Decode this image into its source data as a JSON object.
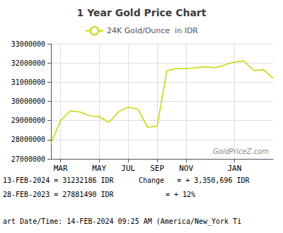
{
  "chart_data": {
    "type": "line",
    "title": "1 Year Gold Price Chart",
    "categories": [
      null,
      "MAR",
      null,
      null,
      null,
      "MAY",
      null,
      null,
      "JUL",
      null,
      null,
      "SEP",
      null,
      null,
      "NOV",
      null,
      null,
      null,
      null,
      "JAN",
      null,
      null,
      null,
      null
    ],
    "series": [
      {
        "name": "24K Gold/Ounce  in IDR",
        "color": "#c8d400",
        "values": [
          27800000,
          29000000,
          29500000,
          29450000,
          29250000,
          29200000,
          28900000,
          29450000,
          29700000,
          29600000,
          28650000,
          28700000,
          31600000,
          31700000,
          31700000,
          31750000,
          31800000,
          31750000,
          31900000,
          32050000,
          32100000,
          31600000,
          31650000,
          31200000
        ]
      }
    ],
    "ylim": [
      27000000,
      33000000
    ],
    "yticks": [
      27000000,
      28000000,
      29000000,
      30000000,
      31000000,
      32000000,
      33000000
    ],
    "grid": true,
    "annotations": [
      "GoldPriceZ.com",
      "13-FEB-2024 = 31232186 IDR",
      "Change   = + 3,350,696 IDR",
      "28-FEB-2023 = 27881490 IDR",
      "= + 12%",
      "art Date/Time: 14-FEB-2024 09:25 AM (America/New_York Ti"
    ]
  }
}
